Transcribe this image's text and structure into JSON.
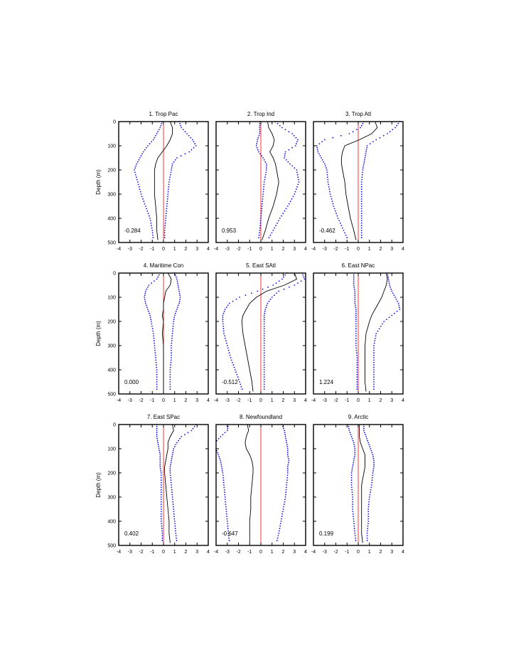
{
  "colors": {
    "mean": "#000000",
    "bounds": "#1010e0",
    "zero": "#ff0000",
    "frame": "#000000"
  },
  "chart_data": {
    "type": "line",
    "layout": "3x3 panel grid, depth on inverted y-axis",
    "ylabel": "Depth (m)",
    "xlim": [
      -4,
      4
    ],
    "ylim": [
      0,
      500
    ],
    "y_inverted": true,
    "xticks": [
      -4,
      -3,
      -2,
      -1,
      0,
      1,
      2,
      3,
      4
    ],
    "yticks": [
      0,
      100,
      200,
      300,
      400,
      500
    ],
    "depths": [
      0,
      25,
      50,
      75,
      100,
      125,
      150,
      175,
      200,
      250,
      300,
      350,
      400,
      450,
      490
    ],
    "panels": [
      {
        "title": "1. Trop Pac",
        "stat": "-0.284",
        "mean": [
          0.6,
          0.8,
          0.8,
          0.6,
          0.3,
          -0.1,
          -0.5,
          -0.7,
          -0.8,
          -0.8,
          -0.8,
          -0.7,
          -0.6,
          -0.6,
          -0.5
        ],
        "lower": [
          -0.1,
          -0.3,
          -0.6,
          -0.9,
          -1.4,
          -1.8,
          -2.1,
          -2.4,
          -2.6,
          -2.3,
          -2.0,
          -1.6,
          -1.2,
          -1.0,
          -0.9
        ],
        "upper": [
          1.4,
          1.6,
          2.1,
          2.6,
          2.9,
          2.3,
          1.2,
          0.8,
          0.7,
          0.5,
          0.4,
          0.3,
          0.2,
          0.1,
          0.1
        ]
      },
      {
        "title": "2. Trop Ind",
        "stat": "0.953",
        "mean": [
          0.6,
          0.7,
          1.0,
          1.2,
          1.1,
          0.8,
          1.1,
          1.3,
          1.4,
          1.6,
          1.4,
          1.1,
          0.7,
          0.4,
          0.1
        ],
        "lower": [
          -0.1,
          -0.1,
          -0.1,
          -0.3,
          -0.4,
          -0.2,
          0.2,
          0.5,
          0.5,
          0.3,
          0.2,
          0.1,
          0.0,
          -0.1,
          -0.2
        ],
        "upper": [
          1.3,
          1.9,
          2.8,
          3.3,
          3.1,
          2.2,
          2.1,
          2.6,
          3.2,
          3.4,
          3.0,
          2.4,
          1.7,
          1.1,
          0.6
        ]
      },
      {
        "title": "3. Trop Atl",
        "stat": "-0.462",
        "mean": [
          1.5,
          1.7,
          1.2,
          0.1,
          -1.2,
          -1.4,
          -1.5,
          -1.5,
          -1.4,
          -1.2,
          -1.1,
          -0.9,
          -0.7,
          -0.4,
          -0.2
        ],
        "lower": [
          0.5,
          0.2,
          -0.8,
          -3.0,
          -3.7,
          -3.6,
          -3.3,
          -3.0,
          -2.8,
          -2.7,
          -2.5,
          -2.2,
          -1.8,
          -1.3,
          -0.9
        ],
        "upper": [
          3.7,
          3.3,
          2.6,
          1.6,
          0.8,
          0.7,
          0.6,
          0.5,
          0.4,
          0.3,
          0.3,
          0.3,
          0.3,
          0.3,
          0.3
        ]
      },
      {
        "title": "4. Maritime Con",
        "stat": "0.000",
        "mean": [
          0.4,
          0.7,
          0.6,
          0.2,
          0.1,
          0.0,
          0.0,
          -0.1,
          0.0,
          -0.1,
          0.0,
          0.0,
          0.0,
          0.0,
          0.0
        ],
        "lower": [
          -0.3,
          -0.6,
          -1.3,
          -1.6,
          -1.7,
          -1.6,
          -1.4,
          -1.2,
          -1.1,
          -0.9,
          -0.8,
          -0.7,
          -0.6,
          -0.6,
          -0.6
        ],
        "upper": [
          1.0,
          1.2,
          1.3,
          1.4,
          1.5,
          1.4,
          1.2,
          1.0,
          0.9,
          0.8,
          0.7,
          0.7,
          0.6,
          0.6,
          0.6
        ]
      },
      {
        "title": "5. East SAtl",
        "stat": "-0.512",
        "mean": [
          3.0,
          3.2,
          2.1,
          0.5,
          -0.4,
          -1.0,
          -1.3,
          -1.6,
          -1.7,
          -1.6,
          -1.4,
          -1.2,
          -1.0,
          -0.8,
          -0.7
        ],
        "lower": [
          2.3,
          1.9,
          1.1,
          -0.3,
          -1.9,
          -2.8,
          -3.2,
          -3.4,
          -3.4,
          -3.3,
          -3.0,
          -2.7,
          -2.3,
          -1.9,
          -1.6
        ],
        "upper": [
          3.7,
          3.9,
          3.0,
          1.6,
          1.0,
          0.6,
          0.4,
          0.3,
          0.3,
          0.3,
          0.3,
          0.3,
          0.3,
          0.3,
          0.3
        ]
      },
      {
        "title": "6. East NPac",
        "stat": "1.224",
        "mean": [
          2.5,
          2.6,
          2.5,
          2.3,
          2.1,
          1.8,
          1.5,
          1.2,
          1.0,
          0.7,
          0.6,
          0.6,
          0.6,
          0.6,
          0.7
        ],
        "lower": [
          -0.4,
          -0.4,
          -0.4,
          -0.3,
          -0.3,
          -0.3,
          -0.2,
          -0.2,
          -0.2,
          -0.2,
          -0.2,
          -0.1,
          -0.1,
          -0.1,
          -0.1
        ],
        "upper": [
          2.6,
          2.7,
          2.8,
          3.0,
          3.3,
          3.6,
          3.7,
          3.0,
          2.3,
          1.6,
          1.4,
          1.4,
          1.4,
          1.4,
          1.4
        ]
      },
      {
        "title": "7. East SPac",
        "stat": "0.402",
        "mean": [
          0.8,
          0.9,
          0.6,
          0.4,
          0.4,
          0.3,
          0.2,
          0.1,
          0.1,
          0.2,
          0.3,
          0.4,
          0.5,
          0.5,
          0.6
        ],
        "lower": [
          -0.6,
          -0.6,
          -0.6,
          -0.5,
          -0.4,
          -0.3,
          -0.3,
          -0.3,
          -0.2,
          -0.2,
          -0.2,
          -0.2,
          -0.2,
          -0.1,
          -0.1
        ],
        "upper": [
          2.9,
          2.5,
          1.6,
          1.2,
          0.9,
          0.8,
          0.7,
          0.6,
          0.6,
          0.7,
          0.8,
          0.9,
          1.0,
          1.1,
          1.2
        ]
      },
      {
        "title": "8. Newfoundland",
        "stat": "-0.647",
        "mean": [
          -1.2,
          -1.1,
          -1.3,
          -1.4,
          -1.3,
          -1.0,
          -0.8,
          -0.7,
          -0.7,
          -0.8,
          -0.9,
          -0.9,
          -1.0,
          -1.0,
          -1.0
        ],
        "lower": [
          -2.9,
          -3.0,
          -3.6,
          -4.1,
          -4.0,
          -3.8,
          -3.6,
          -3.5,
          -3.4,
          -3.3,
          -3.2,
          -3.1,
          -3.0,
          -2.9,
          -2.8
        ],
        "upper": [
          1.9,
          2.1,
          2.2,
          2.3,
          2.4,
          2.4,
          2.5,
          2.4,
          2.4,
          2.3,
          2.2,
          2.0,
          1.8,
          1.6,
          1.4
        ],
        "note": ""
      },
      {
        "title": "9. Arctic",
        "stat": "0.199",
        "mean": [
          0.1,
          0.1,
          0.1,
          0.2,
          0.4,
          0.6,
          0.6,
          0.6,
          0.5,
          0.3,
          0.3,
          0.3,
          0.3,
          0.3,
          0.4
        ],
        "lower": [
          -0.9,
          -0.8,
          -0.6,
          -0.4,
          -0.3,
          -0.3,
          -0.4,
          -0.5,
          -0.6,
          -0.6,
          -0.5,
          -0.5,
          -0.4,
          -0.3,
          -0.2
        ],
        "upper": [
          0.5,
          0.5,
          0.7,
          0.9,
          1.1,
          1.3,
          1.4,
          1.4,
          1.3,
          1.2,
          1.0,
          0.9,
          0.9,
          0.8,
          0.8
        ]
      }
    ]
  }
}
